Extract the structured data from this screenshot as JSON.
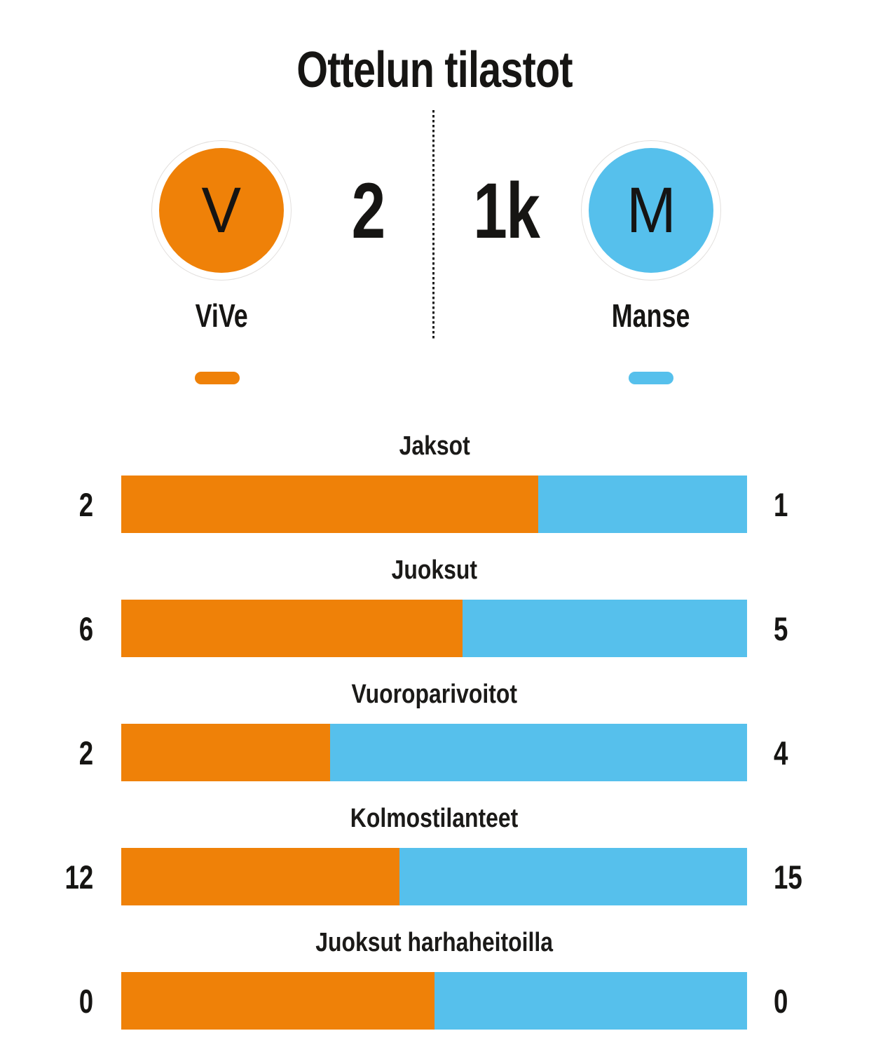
{
  "title": "Ottelun tilastot",
  "scoreboard": {
    "home": {
      "name": "ViVe",
      "initial": "V",
      "score": "2",
      "color": "#ef8108"
    },
    "away": {
      "name": "Manse",
      "initial": "M",
      "score": "1k",
      "color": "#56c0ec"
    }
  },
  "chart_data": {
    "type": "bar",
    "subtype": "horizontal-proportional-stacked",
    "title": "Ottelun tilastot",
    "categories": [
      "Jaksot",
      "Juoksut",
      "Vuoroparivoitot",
      "Kolmostilanteet",
      "Juoksut harhaheitoilla"
    ],
    "series": [
      {
        "name": "ViVe",
        "color": "#ef8108",
        "values": [
          2,
          6,
          2,
          12,
          0
        ]
      },
      {
        "name": "Manse",
        "color": "#56c0ec",
        "values": [
          1,
          5,
          4,
          15,
          0
        ]
      }
    ],
    "value_labels": "at-both-ends-of-each-bar",
    "zero_zero_split_percent": 50,
    "legend_position": "top"
  }
}
